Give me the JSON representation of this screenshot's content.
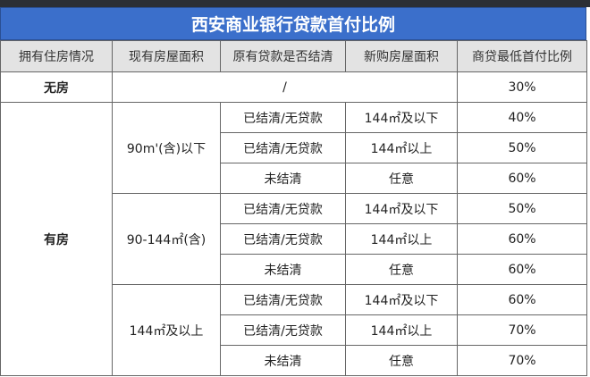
{
  "title": "西安商业银行贷款首付比例",
  "headers": [
    "拥有住房情况",
    "现有房屋面积",
    "原有贷款是否结清",
    "新购房屋面积",
    "商贷最低首付比例"
  ],
  "no_house": {
    "label": "无房",
    "middle": "/",
    "ratio": "30%"
  },
  "has_house": {
    "label": "有房",
    "groups": [
      {
        "area": "90m'(含)以下",
        "rows": [
          {
            "cleared": "已结清/无贷款",
            "new_area": "144㎡及以下",
            "ratio": "40%"
          },
          {
            "cleared": "已结清/无贷款",
            "new_area": "144㎡以上",
            "ratio": "50%"
          },
          {
            "cleared": "未结清",
            "new_area": "任意",
            "ratio": "60%"
          }
        ]
      },
      {
        "area": "90-144㎡(含)",
        "rows": [
          {
            "cleared": "已结清/无贷款",
            "new_area": "144㎡及以下",
            "ratio": "50%"
          },
          {
            "cleared": "已结清/无贷款",
            "new_area": "144㎡以上",
            "ratio": "60%"
          },
          {
            "cleared": "未结清",
            "new_area": "任意",
            "ratio": "60%"
          }
        ]
      },
      {
        "area": "144㎡及以上",
        "rows": [
          {
            "cleared": "已结清/无贷款",
            "new_area": "144㎡及以下",
            "ratio": "60%"
          },
          {
            "cleared": "已结清/无贷款",
            "new_area": "144㎡以上",
            "ratio": "70%"
          },
          {
            "cleared": "未结清",
            "new_area": "任意",
            "ratio": "70%"
          }
        ]
      }
    ]
  },
  "colors": {
    "title_bg": "#3b6fcb",
    "header_bg": "#e3e3e3"
  }
}
